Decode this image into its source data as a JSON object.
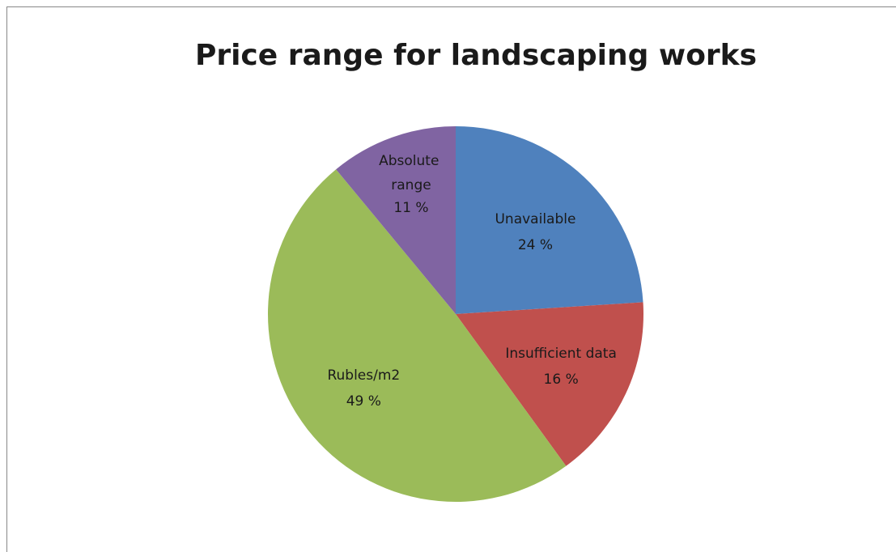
{
  "chart_data": {
    "type": "pie",
    "title": "Price range for landscaping works",
    "categories": [
      "Unavailable",
      "Insufficient data",
      "Rubles/m2",
      "Absolute range"
    ],
    "values": [
      24,
      16,
      49,
      11
    ],
    "value_labels": [
      "24 %",
      "16 %",
      "49 %",
      "11 %"
    ],
    "colors": [
      "#4f81bd",
      "#c0504d",
      "#9bbb59",
      "#8064a2"
    ]
  }
}
